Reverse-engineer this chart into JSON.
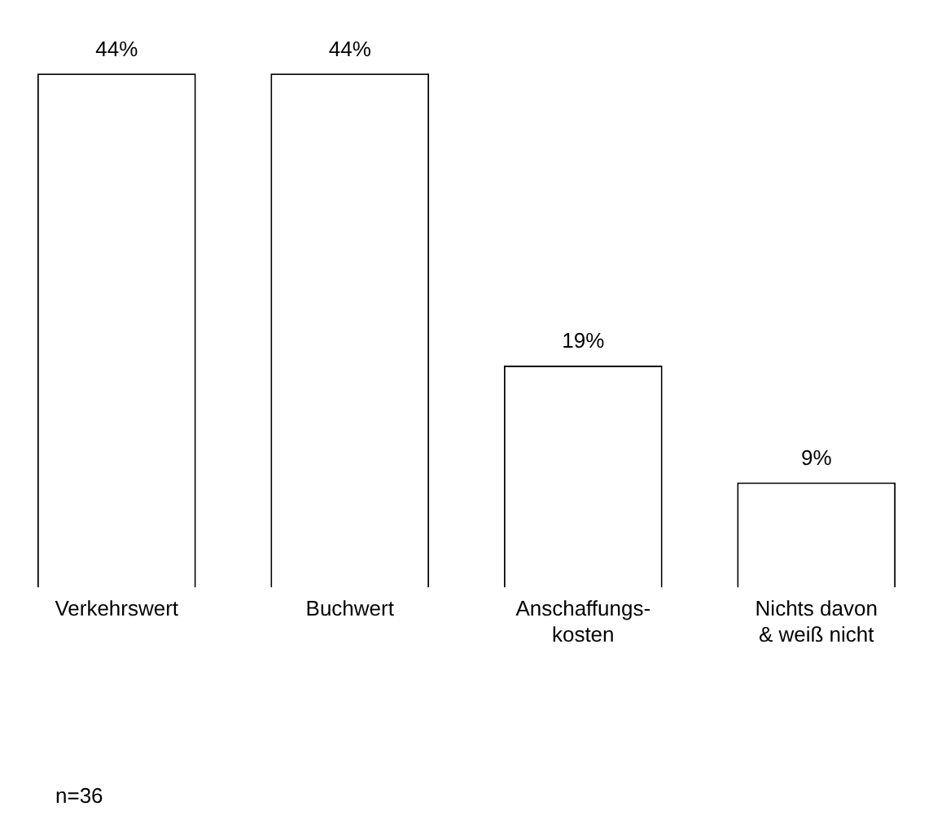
{
  "chart_data": {
    "type": "bar",
    "categories": [
      "Verkehrswert",
      "Buchwert",
      "Anschaffungs-\nkosten",
      "Nichts davon\n& weiß nicht"
    ],
    "values": [
      44,
      44,
      19,
      9
    ],
    "color": "#ffffff",
    "data_labels": true,
    "value_labels": [
      "44%",
      "44%",
      "19%",
      "9%"
    ],
    "grid": false,
    "legend": false,
    "tick_labels": "x",
    "annotations": [
      "n=36"
    ]
  }
}
